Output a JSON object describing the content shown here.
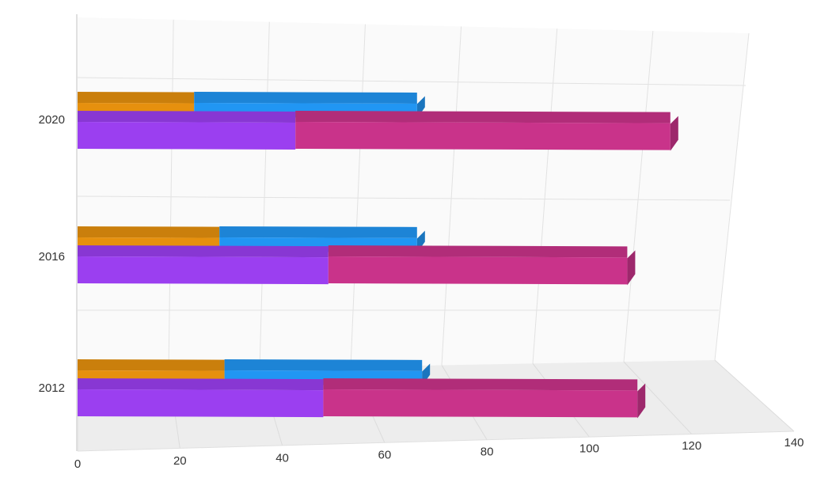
{
  "chart_data": {
    "type": "bar",
    "orientation": "horizontal",
    "style": "3d-stacked",
    "categories": [
      "2012",
      "2016",
      "2020"
    ],
    "stacks": [
      {
        "stack": "front",
        "series": [
          {
            "color": "#9b3ff0",
            "values": [
              48.5,
              49.5,
              43
            ]
          },
          {
            "color": "#c9338a",
            "values": [
              62,
              59,
              74
            ]
          }
        ]
      },
      {
        "stack": "back",
        "series": [
          {
            "color": "#e6900e",
            "values": [
              29,
              28,
              23
            ]
          },
          {
            "color": "#2196f3",
            "values": [
              39,
              39,
              44
            ]
          }
        ]
      }
    ],
    "x_ticks": [
      0,
      20,
      40,
      60,
      80,
      100,
      120,
      140
    ],
    "xlim": [
      0,
      140
    ],
    "grid": true,
    "title": "",
    "xlabel": "",
    "ylabel": ""
  }
}
